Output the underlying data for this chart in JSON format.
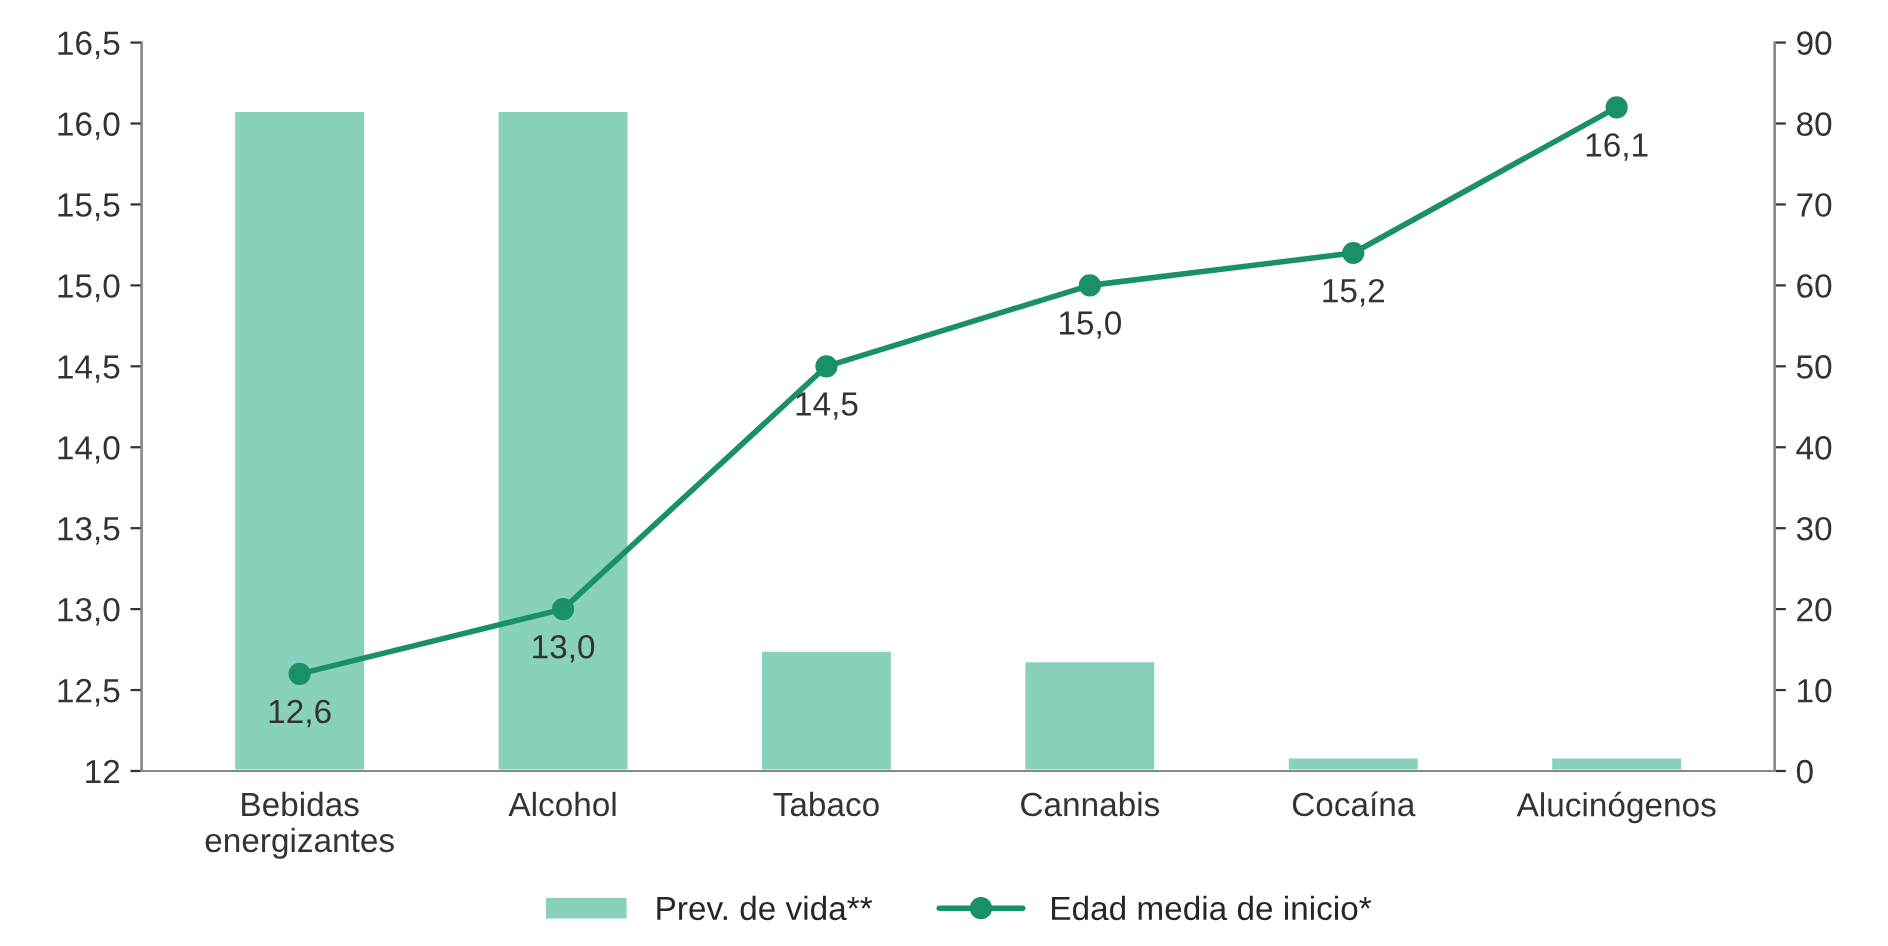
{
  "chart_data": {
    "type": "bar",
    "categories": [
      "Bebidas\nenergizantes",
      "Alcohol",
      "Tabaco",
      "Cannabis",
      "Cocaína",
      "Alucinógenos"
    ],
    "series": [
      {
        "name": "Prev. de vida**",
        "axis": "y2",
        "color": "#88d1bc",
        "values": [
          81.6,
          81.6,
          14.9,
          13.6,
          1.7,
          1.7
        ]
      },
      {
        "name": "Edad media de inicio*",
        "type": "line",
        "axis": "y",
        "color": "#1a9068",
        "marker": "circle",
        "values": [
          12.6,
          13.0,
          14.5,
          15.0,
          15.2,
          16.1
        ],
        "value_labels": [
          "12,6",
          "13,0",
          "14,5",
          "15,0",
          "15,2",
          "16,1"
        ]
      }
    ],
    "ylim": [
      12,
      16.5
    ],
    "yticks": [
      12,
      {
        "value": 12.5,
        "label": "12,5"
      },
      {
        "value": 13,
        "label": "13,0"
      },
      {
        "value": 13.5,
        "label": "13,5"
      },
      {
        "value": 14,
        "label": "14,0"
      },
      {
        "value": 14.5,
        "label": "14,5"
      },
      {
        "value": 15,
        "label": "15,0"
      },
      {
        "value": 15.5,
        "label": "15,5"
      },
      {
        "value": 16,
        "label": "16,0"
      },
      {
        "value": 16.5,
        "label": "16,5"
      }
    ],
    "y2lim": [
      0,
      90
    ],
    "y2ticks": [
      0,
      10,
      20,
      30,
      40,
      50,
      60,
      70,
      80,
      90
    ],
    "grid": false,
    "legend": "bottom"
  }
}
